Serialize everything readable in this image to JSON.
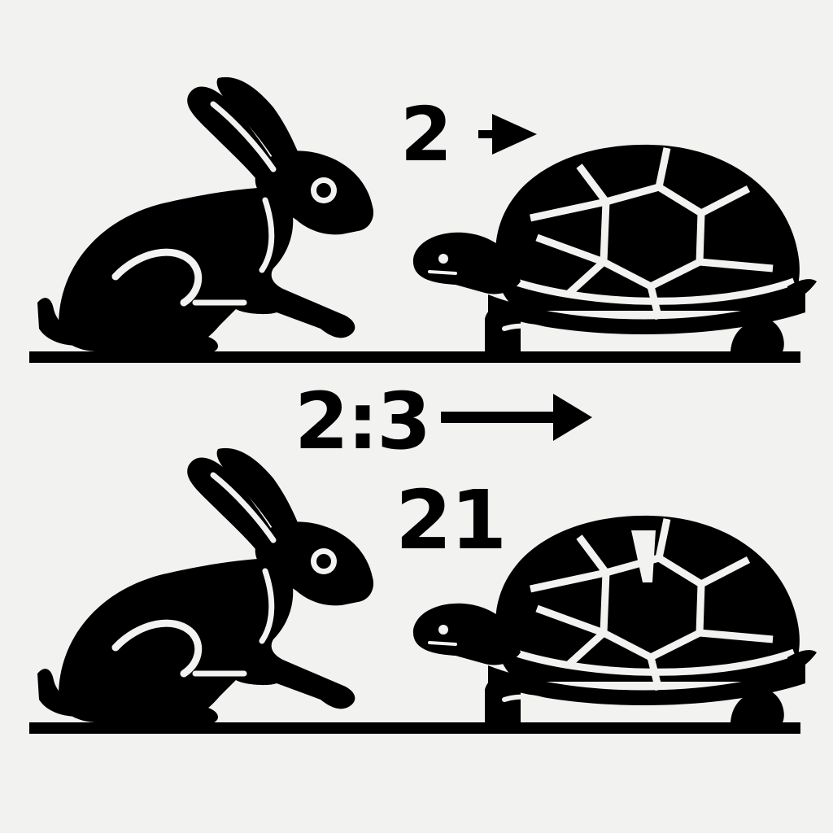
{
  "labels": {
    "top": "2",
    "middle": "2:3",
    "bottom": "21"
  },
  "icons": {
    "hare": "hare-silhouette-icon",
    "tortoise": "tortoise-silhouette-icon",
    "arrow": "arrow-right-icon"
  },
  "colors": {
    "background": "#f2f2f1",
    "ink": "#000000"
  }
}
